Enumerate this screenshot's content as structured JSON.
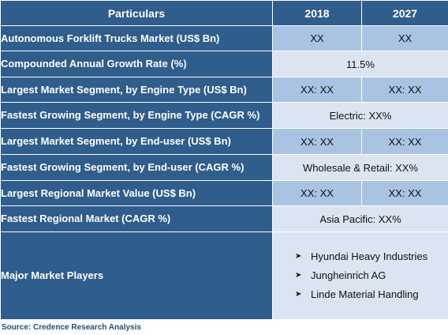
{
  "header": {
    "particulars": "Particulars",
    "year1": "2018",
    "year2": "2027"
  },
  "rows": [
    {
      "label": "Autonomous Forklift Trucks Market (US$ Bn)",
      "v2018": "XX",
      "v2027": "XX"
    },
    {
      "label": "Compounded Annual Growth Rate (%)",
      "merged": "11.5%"
    },
    {
      "label": "Largest Market Segment, by Engine Type (US$ Bn)",
      "v2018": "XX: XX",
      "v2027": "XX: XX"
    },
    {
      "label": "Fastest Growing Segment, by Engine Type (CAGR %)",
      "merged": "Electric: XX%"
    },
    {
      "label": "Largest Market Segment, by End-user (US$ Bn)",
      "v2018": "XX: XX",
      "v2027": "XX: XX"
    },
    {
      "label": "Fastest Growing Segment, by End-user (CAGR %)",
      "merged": "Wholesale & Retail: XX%"
    },
    {
      "label": "Largest Regional Market Value (US$ Bn)",
      "v2018": "XX: XX",
      "v2027": "XX: XX"
    },
    {
      "label": "Fastest Regional Market (CAGR %)",
      "merged": "Asia Pacific: XX%"
    }
  ],
  "players": {
    "label": "Major Market Players",
    "items": [
      "Hyundai Heavy Industries",
      "Jungheinrich AG",
      "Linde Material Handling"
    ]
  },
  "source": "Source: Credence Research Analysis",
  "colors": {
    "header_bg": "#2f5d8c",
    "value_dark": "#a9c3e3",
    "value_light": "#dbe5f1"
  }
}
